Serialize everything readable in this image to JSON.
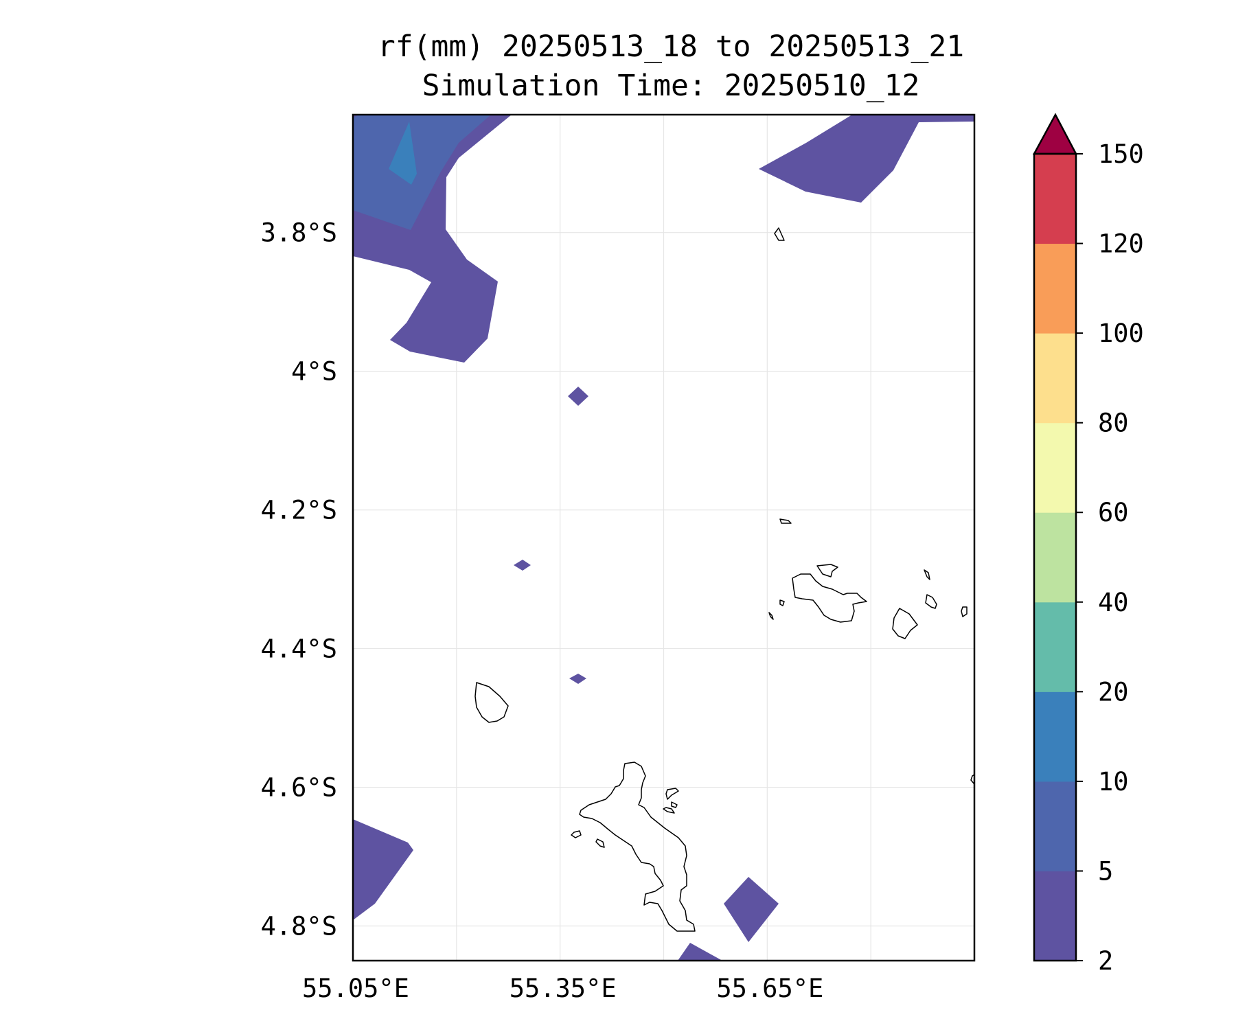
{
  "title_line1": "rf(mm) 20250513_18 to 20250513_21",
  "title_line2": "Simulation Time: 20250510_12",
  "map": {
    "lon_range": [
      55.05,
      55.95
    ],
    "lat_range": [
      -4.85,
      -3.63
    ],
    "lat_ticks": [
      {
        "value": -3.8,
        "label": "3.8°S"
      },
      {
        "value": -4.0,
        "label": "4°S"
      },
      {
        "value": -4.2,
        "label": "4.2°S"
      },
      {
        "value": -4.4,
        "label": "4.4°S"
      },
      {
        "value": -4.6,
        "label": "4.6°S"
      },
      {
        "value": -4.8,
        "label": "4.8°S"
      }
    ],
    "lon_ticks": [
      {
        "value": 55.05,
        "label": "55.05°E"
      },
      {
        "value": 55.35,
        "label": "55.35°E"
      },
      {
        "value": 55.65,
        "label": "55.65°E"
      }
    ],
    "lon_grid": [
      55.05,
      55.2,
      55.35,
      55.5,
      55.65,
      55.8,
      55.95
    ],
    "lat_grid": [
      -3.8,
      -4.0,
      -4.2,
      -4.4,
      -4.6,
      -4.8
    ],
    "gridlines": true
  },
  "colorbar": {
    "levels": [
      2,
      5,
      10,
      20,
      40,
      60,
      80,
      100,
      120,
      150
    ],
    "labels": [
      "2",
      "5",
      "10",
      "20",
      "40",
      "60",
      "80",
      "100",
      "120",
      "150"
    ],
    "colors": [
      "#5e53a1",
      "#4e66ad",
      "#3a80bb",
      "#64bcaa",
      "#bde3a0",
      "#f3f9ae",
      "#fddf8d",
      "#f99d58",
      "#d53e4f"
    ],
    "extend_color": "#9e0142"
  },
  "land_color": "none",
  "coast_color": "#000000"
}
